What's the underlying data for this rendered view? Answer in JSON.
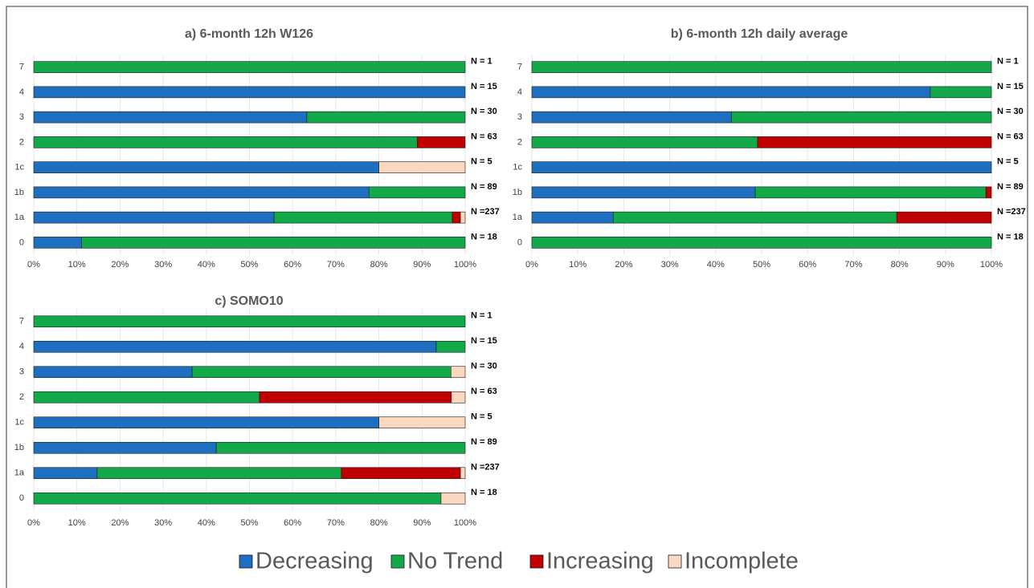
{
  "legend": [
    {
      "name": "Decreasing",
      "color": "#1f6fc0"
    },
    {
      "name": "No Trend",
      "color": "#13a84a"
    },
    {
      "name": "Increasing",
      "color": "#c00000"
    },
    {
      "name": "Incomplete",
      "color": "#fad7c0"
    }
  ],
  "chart_data": [
    {
      "type": "bar",
      "orientation": "horizontal",
      "stacked": true,
      "grid": true,
      "title": "a) 6-month 12h W126",
      "categories": [
        "7",
        "4",
        "3",
        "2",
        "1c",
        "1b",
        "1a",
        "0"
      ],
      "n_labels": [
        "N = 1",
        "N = 15",
        "N = 30",
        "N = 63",
        "N = 5",
        "N = 89",
        "N =237",
        "N = 18"
      ],
      "xlim": [
        0,
        100
      ],
      "xticks": [
        {
          "value": 0,
          "label": "0%"
        },
        {
          "value": 10,
          "label": "10%"
        },
        {
          "value": 20,
          "label": "20%"
        },
        {
          "value": 30,
          "label": "30%"
        },
        {
          "value": 40,
          "label": "40%"
        },
        {
          "value": 50,
          "label": "50%"
        },
        {
          "value": 60,
          "label": "60%"
        },
        {
          "value": 70,
          "label": "70%"
        },
        {
          "value": 80,
          "label": "80%"
        },
        {
          "value": 90,
          "label": "90%"
        },
        {
          "value": 100,
          "label": "100%"
        }
      ],
      "series": [
        {
          "values": [
            0,
            100,
            63.3,
            0,
            80,
            77.7,
            55.7,
            11.1
          ]
        },
        {
          "values": [
            100,
            0,
            36.7,
            88.9,
            0,
            22.3,
            41.3,
            88.9
          ]
        },
        {
          "values": [
            0,
            0,
            0,
            11.1,
            0,
            0,
            1.9,
            0
          ]
        },
        {
          "values": [
            0,
            0,
            0,
            0,
            20,
            0,
            1.1,
            0
          ]
        }
      ]
    },
    {
      "type": "bar",
      "orientation": "horizontal",
      "stacked": true,
      "grid": true,
      "title": "b) 6-month 12h daily average",
      "categories": [
        "7",
        "4",
        "3",
        "2",
        "1c",
        "1b",
        "1a",
        "0"
      ],
      "n_labels": [
        "N = 1",
        "N = 15",
        "N = 30",
        "N = 63",
        "N = 5",
        "N = 89",
        "N =237",
        "N = 18"
      ],
      "xlim": [
        0,
        100
      ],
      "xticks": [
        {
          "value": 0,
          "label": "0%"
        },
        {
          "value": 10,
          "label": "10%"
        },
        {
          "value": 20,
          "label": "20%"
        },
        {
          "value": 30,
          "label": "30%"
        },
        {
          "value": 40,
          "label": "40%"
        },
        {
          "value": 50,
          "label": "50%"
        },
        {
          "value": 60,
          "label": "60%"
        },
        {
          "value": 70,
          "label": "70%"
        },
        {
          "value": 80,
          "label": "80%"
        },
        {
          "value": 90,
          "label": "90%"
        },
        {
          "value": 100,
          "label": "100%"
        }
      ],
      "series": [
        {
          "values": [
            0,
            86.7,
            43.4,
            0,
            100,
            48.6,
            17.7,
            0
          ]
        },
        {
          "values": [
            100,
            13.3,
            56.6,
            49.1,
            0,
            50.2,
            61.7,
            100
          ]
        },
        {
          "values": [
            0,
            0,
            0,
            50.9,
            0,
            1.2,
            20.6,
            0
          ]
        },
        {
          "values": [
            0,
            0,
            0,
            0,
            0,
            0,
            0,
            0
          ]
        }
      ]
    },
    {
      "type": "bar",
      "orientation": "horizontal",
      "stacked": true,
      "grid": true,
      "title": "c) SOMO10",
      "categories": [
        "7",
        "4",
        "3",
        "2",
        "1c",
        "1b",
        "1a",
        "0"
      ],
      "n_labels": [
        "N = 1",
        "N = 15",
        "N = 30",
        "N = 63",
        "N = 5",
        "N = 89",
        "N =237",
        "N = 18"
      ],
      "xlim": [
        0,
        100
      ],
      "xticks": [
        {
          "value": 0,
          "label": "0%"
        },
        {
          "value": 10,
          "label": "10%"
        },
        {
          "value": 20,
          "label": "20%"
        },
        {
          "value": 30,
          "label": "30%"
        },
        {
          "value": 40,
          "label": "40%"
        },
        {
          "value": 50,
          "label": "50%"
        },
        {
          "value": 60,
          "label": "60%"
        },
        {
          "value": 70,
          "label": "70%"
        },
        {
          "value": 80,
          "label": "80%"
        },
        {
          "value": 90,
          "label": "90%"
        },
        {
          "value": 100,
          "label": "100%"
        }
      ],
      "series": [
        {
          "values": [
            0,
            93.3,
            36.7,
            0,
            80,
            42.3,
            14.7,
            0
          ]
        },
        {
          "values": [
            100,
            6.7,
            60,
            52.3,
            0,
            57.7,
            56.6,
            94.4
          ]
        },
        {
          "values": [
            0,
            0,
            0,
            44.5,
            0,
            0,
            27.6,
            0
          ]
        },
        {
          "values": [
            0,
            0,
            3.3,
            3.2,
            20,
            0,
            1.1,
            5.6
          ]
        }
      ]
    }
  ]
}
